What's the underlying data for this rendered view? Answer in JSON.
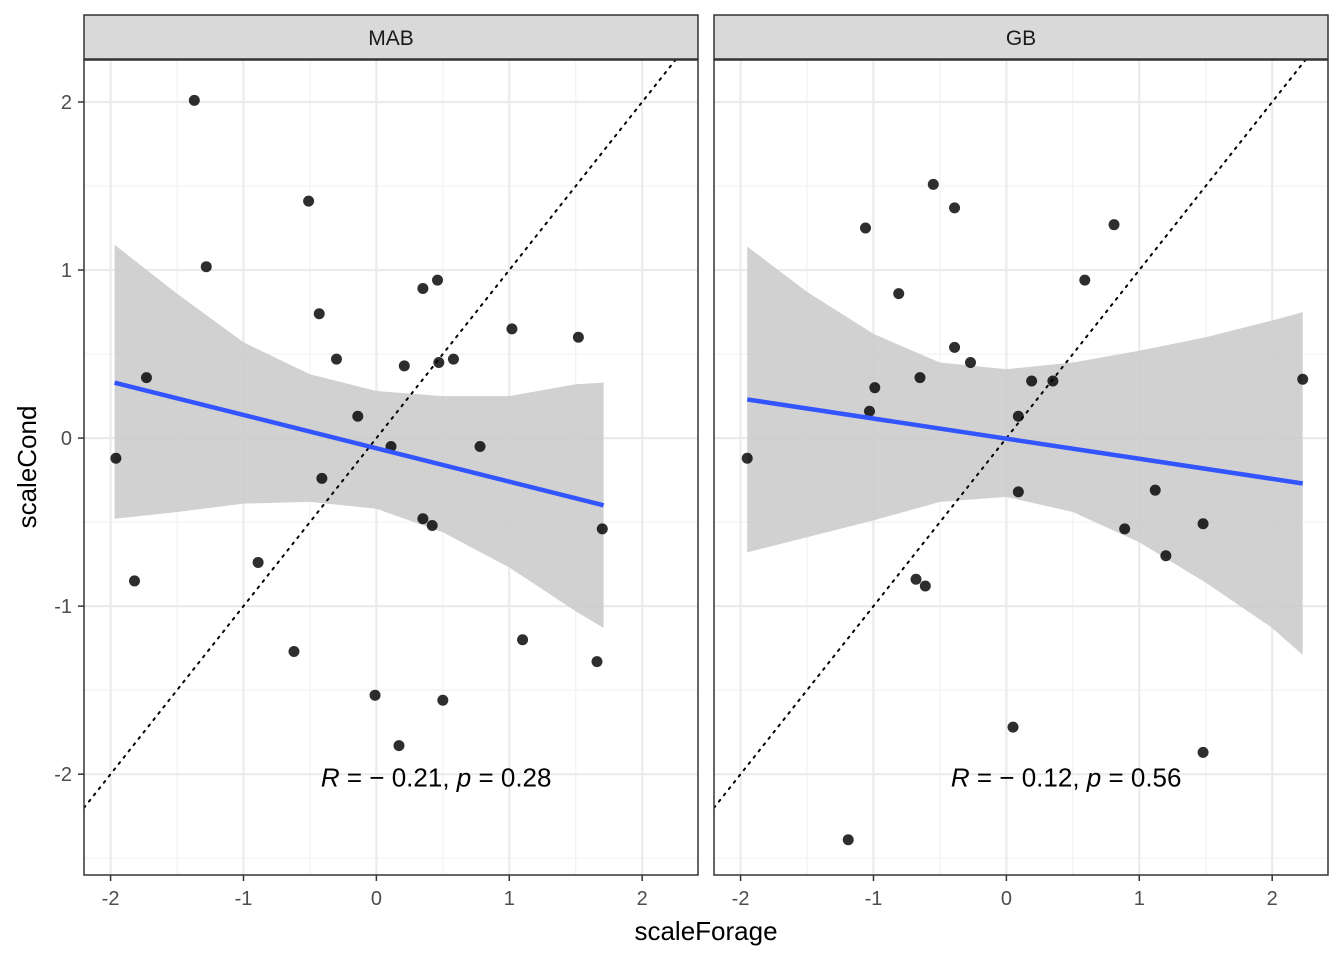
{
  "chart_data": {
    "type": "scatter",
    "xlabel": "scaleForage",
    "ylabel": "scaleCond",
    "xlim": [
      -2.2,
      2.42
    ],
    "ylim": [
      -2.6,
      2.25
    ],
    "x_ticks": [
      -2,
      -1,
      0,
      1,
      2
    ],
    "x_tick_labels": [
      "-2",
      "-1",
      "0",
      "1",
      "2"
    ],
    "y_ticks": [
      -2,
      -1,
      0,
      1,
      2
    ],
    "y_tick_labels": [
      "-2",
      "-1",
      "0",
      "1",
      "2"
    ],
    "grid": true,
    "reference_line": "y = x (dotted)",
    "colors": {
      "points": "#000000",
      "fit_line": "#3355ff",
      "ribbon": "#cccccc",
      "strip": "#d9d9d9",
      "grid": "#ebebeb"
    },
    "panels": [
      {
        "strip_label": "MAB",
        "annotation": {
          "R": "− 0.21",
          "p": "0.28",
          "x": 0.45,
          "y": -2.02
        },
        "fit": {
          "x": [
            -1.97,
            1.71
          ],
          "y": [
            0.33,
            -0.4
          ]
        },
        "ribbon": {
          "x": [
            -1.97,
            -1.5,
            -1.0,
            -0.5,
            0.0,
            0.5,
            1.0,
            1.5,
            1.71
          ],
          "upper": [
            1.15,
            0.86,
            0.57,
            0.38,
            0.28,
            0.25,
            0.25,
            0.32,
            0.33
          ],
          "lower": [
            -0.48,
            -0.44,
            -0.39,
            -0.38,
            -0.42,
            -0.56,
            -0.77,
            -1.03,
            -1.13
          ]
        },
        "points": [
          [
            -1.96,
            -0.12
          ],
          [
            -1.82,
            -0.85
          ],
          [
            -1.73,
            0.36
          ],
          [
            -1.37,
            2.01
          ],
          [
            -1.28,
            1.02
          ],
          [
            -0.89,
            -0.74
          ],
          [
            -0.62,
            -1.27
          ],
          [
            -0.51,
            1.41
          ],
          [
            -0.43,
            0.74
          ],
          [
            -0.41,
            -0.24
          ],
          [
            -0.3,
            0.47
          ],
          [
            -0.14,
            0.13
          ],
          [
            -0.01,
            -1.53
          ],
          [
            0.11,
            -0.05
          ],
          [
            0.17,
            -1.83
          ],
          [
            0.21,
            0.43
          ],
          [
            0.35,
            0.89
          ],
          [
            0.35,
            -0.48
          ],
          [
            0.42,
            -0.52
          ],
          [
            0.46,
            0.94
          ],
          [
            0.47,
            0.45
          ],
          [
            0.5,
            -1.56
          ],
          [
            0.58,
            0.47
          ],
          [
            0.78,
            -0.05
          ],
          [
            1.02,
            0.65
          ],
          [
            1.1,
            -1.2
          ],
          [
            1.52,
            0.6
          ],
          [
            1.66,
            -1.33
          ],
          [
            1.7,
            -0.54
          ]
        ]
      },
      {
        "strip_label": "GB",
        "annotation": {
          "R": "− 0.12",
          "p": "0.56",
          "x": 0.45,
          "y": -2.02
        },
        "fit": {
          "x": [
            -1.95,
            2.23
          ],
          "y": [
            0.23,
            -0.27
          ]
        },
        "ribbon": {
          "x": [
            -1.95,
            -1.5,
            -1.0,
            -0.5,
            0.0,
            0.5,
            1.0,
            1.5,
            2.0,
            2.23
          ],
          "upper": [
            1.14,
            0.87,
            0.62,
            0.45,
            0.41,
            0.45,
            0.52,
            0.6,
            0.7,
            0.75
          ],
          "lower": [
            -0.68,
            -0.59,
            -0.49,
            -0.38,
            -0.35,
            -0.44,
            -0.62,
            -0.86,
            -1.13,
            -1.29
          ]
        },
        "points": [
          [
            -1.95,
            -0.12
          ],
          [
            -1.19,
            -2.39
          ],
          [
            -1.06,
            1.25
          ],
          [
            -1.03,
            0.16
          ],
          [
            -0.99,
            0.3
          ],
          [
            -0.81,
            0.86
          ],
          [
            -0.68,
            -0.84
          ],
          [
            -0.65,
            0.36
          ],
          [
            -0.61,
            -0.88
          ],
          [
            -0.55,
            1.51
          ],
          [
            -0.39,
            1.37
          ],
          [
            -0.39,
            0.54
          ],
          [
            -0.27,
            0.45
          ],
          [
            0.05,
            -1.72
          ],
          [
            0.09,
            -0.32
          ],
          [
            0.09,
            0.13
          ],
          [
            0.19,
            0.34
          ],
          [
            0.35,
            0.34
          ],
          [
            0.59,
            0.94
          ],
          [
            0.81,
            1.27
          ],
          [
            0.89,
            -0.54
          ],
          [
            1.12,
            -0.31
          ],
          [
            1.2,
            -0.7
          ],
          [
            1.48,
            -0.51
          ],
          [
            1.48,
            -1.87
          ],
          [
            2.23,
            0.35
          ]
        ]
      }
    ]
  }
}
